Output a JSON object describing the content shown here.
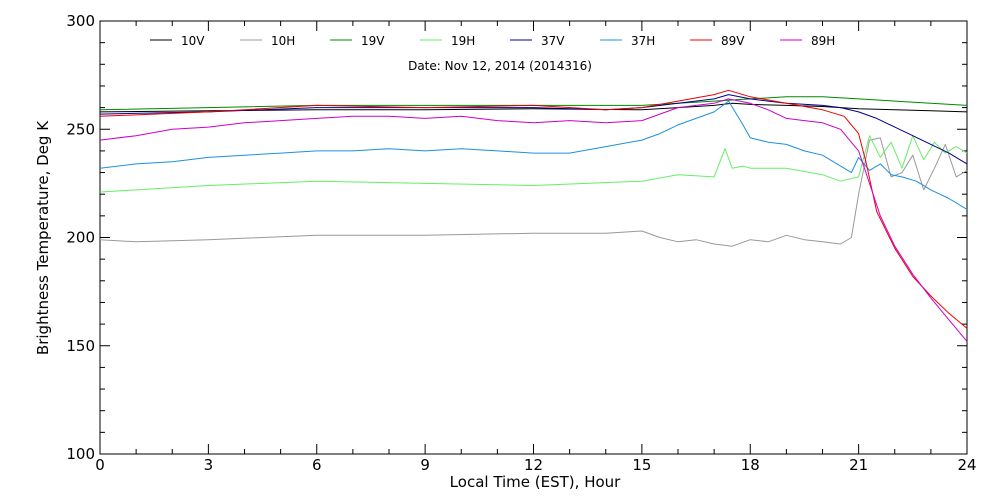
{
  "chart_data": {
    "type": "line",
    "title": "",
    "subtitle": "Date: Nov 12, 2014 (2014316)",
    "xlabel": "Local Time (EST), Hour",
    "ylabel": "Brightness Temperature, Deg K",
    "xlim": [
      0,
      24
    ],
    "ylim": [
      100,
      300
    ],
    "xticks": [
      0,
      3,
      6,
      9,
      12,
      15,
      18,
      21,
      24
    ],
    "yticks": [
      100,
      150,
      200,
      250,
      300
    ],
    "grid": false,
    "legend_position": "top, inside plot, single row",
    "series": [
      {
        "name": "10V",
        "color": "#000000",
        "x": [
          0,
          3,
          6,
          9,
          12,
          15,
          16,
          17,
          17.5,
          18,
          19,
          20,
          21,
          22,
          23,
          24
        ],
        "y": [
          258,
          258.5,
          259,
          259,
          259.5,
          259,
          260,
          261,
          262,
          261.5,
          261,
          260.5,
          259.5,
          259,
          258.5,
          258
        ]
      },
      {
        "name": "10H",
        "color": "#999999",
        "x": [
          0,
          1,
          3,
          6,
          9,
          12,
          14,
          15,
          15.5,
          16,
          16.5,
          17,
          17.5,
          18,
          18.5,
          19,
          19.5,
          20,
          20.5,
          20.8,
          21,
          21.3,
          21.6,
          21.9,
          22.2,
          22.5,
          22.8,
          23.1,
          23.4,
          23.7,
          24
        ],
        "y": [
          199,
          198,
          199,
          201,
          201,
          202,
          202,
          203,
          200,
          198,
          199,
          197,
          196,
          199,
          198,
          201,
          199,
          198,
          197,
          200,
          220,
          245,
          246,
          228,
          230,
          238,
          222,
          232,
          243,
          228,
          231
        ]
      },
      {
        "name": "19V",
        "color": "#008800",
        "x": [
          0,
          3,
          6,
          9,
          12,
          15,
          17,
          18,
          19,
          20,
          21,
          22,
          23,
          24
        ],
        "y": [
          259,
          260,
          261,
          261,
          261,
          261,
          263,
          264,
          265,
          265,
          264,
          263,
          262,
          261
        ]
      },
      {
        "name": "19H",
        "color": "#66ee66",
        "x": [
          0,
          1,
          3,
          6,
          9,
          12,
          15,
          16,
          17,
          17.3,
          17.5,
          17.8,
          18,
          19,
          20,
          20.5,
          21,
          21.3,
          21.6,
          21.9,
          22.2,
          22.5,
          22.8,
          23.1,
          23.4,
          23.7,
          24
        ],
        "y": [
          221,
          222,
          224,
          226,
          225,
          224,
          226,
          229,
          228,
          241,
          232,
          233,
          232,
          232,
          229,
          226,
          228,
          247,
          237,
          244,
          232,
          247,
          236,
          244,
          239,
          242,
          239
        ]
      },
      {
        "name": "37V",
        "color": "#00008b",
        "x": [
          0,
          3,
          6,
          9,
          12,
          14,
          15,
          16,
          17,
          17.4,
          18,
          19,
          20,
          20.5,
          21,
          21.5,
          22,
          22.5,
          23,
          23.5,
          24
        ],
        "y": [
          257,
          258,
          260,
          260,
          260,
          259,
          260,
          262,
          264,
          266,
          264,
          262,
          261,
          260,
          258,
          255,
          251,
          247,
          243,
          239,
          234
        ]
      },
      {
        "name": "37H",
        "color": "#1e90dd",
        "x": [
          0,
          1,
          2,
          3,
          4,
          5,
          6,
          7,
          8,
          9,
          10,
          11,
          12,
          13,
          14,
          15,
          15.5,
          16,
          16.5,
          17,
          17.4,
          17.8,
          18,
          18.5,
          19,
          19.5,
          20,
          20.5,
          20.8,
          21,
          21.3,
          21.6,
          21.9,
          22.2,
          22.6,
          23,
          23.5,
          24
        ],
        "y": [
          232,
          234,
          235,
          237,
          238,
          239,
          240,
          240,
          241,
          240,
          241,
          240,
          239,
          239,
          242,
          245,
          248,
          252,
          255,
          258,
          263,
          252,
          246,
          244,
          243,
          240,
          238,
          233,
          230,
          237,
          231,
          234,
          229,
          228,
          226,
          222,
          218,
          213
        ]
      },
      {
        "name": "89V",
        "color": "#ee0000",
        "x": [
          0,
          3,
          6,
          9,
          12,
          14,
          15,
          16,
          17,
          17.4,
          18,
          19,
          20,
          20.6,
          21,
          21.2,
          21.5,
          22,
          22.5,
          23,
          23.5,
          24
        ],
        "y": [
          256,
          258,
          261,
          260,
          261,
          259,
          260,
          263,
          266,
          268,
          265,
          262,
          259,
          256,
          248,
          235,
          212,
          195,
          182,
          173,
          165,
          158
        ]
      },
      {
        "name": "89H",
        "color": "#cc00cc",
        "x": [
          0,
          1,
          2,
          3,
          4,
          5,
          6,
          7,
          8,
          9,
          10,
          11,
          12,
          13,
          14,
          15,
          15.5,
          16,
          16.5,
          17,
          17.4,
          18,
          18.5,
          19,
          19.5,
          20,
          20.5,
          21,
          21.3,
          21.6,
          22,
          22.5,
          23,
          23.5,
          24
        ],
        "y": [
          245,
          247,
          250,
          251,
          253,
          254,
          255,
          256,
          256,
          255,
          256,
          254,
          253,
          254,
          253,
          254,
          257,
          260,
          261,
          262,
          264,
          262,
          259,
          255,
          254,
          253,
          250,
          240,
          225,
          210,
          196,
          183,
          172,
          162,
          152
        ]
      }
    ]
  }
}
